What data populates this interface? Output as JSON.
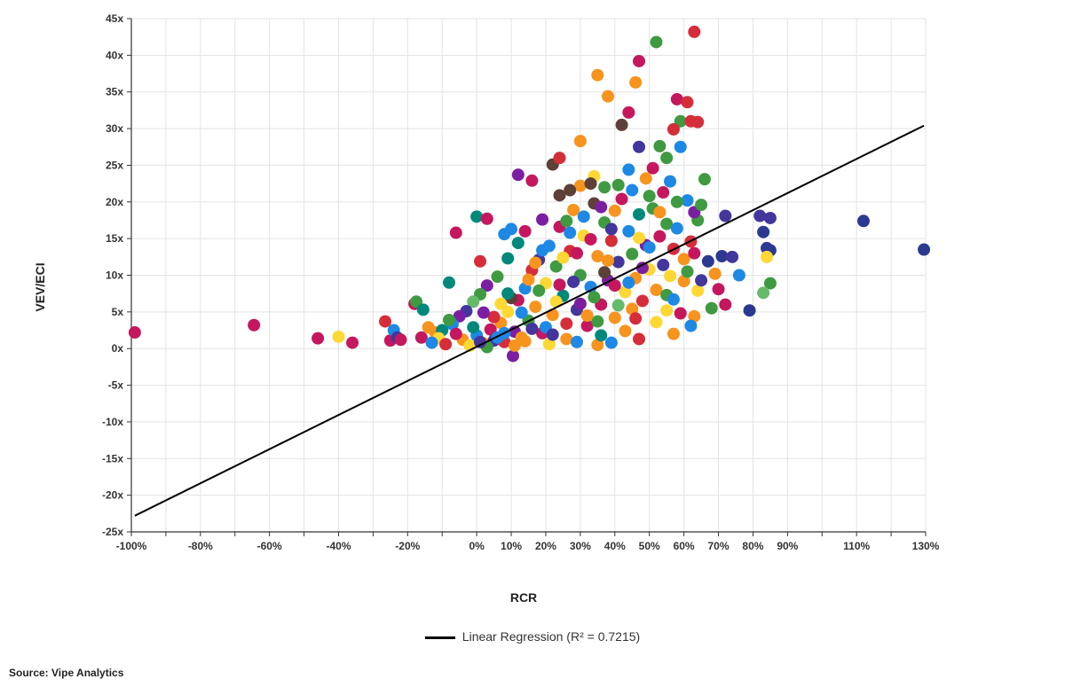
{
  "chart_data": {
    "type": "scatter",
    "title": "",
    "xlabel": "RCR",
    "ylabel": "VEV/ECI",
    "xlim": [
      -100,
      130
    ],
    "ylim": [
      -25,
      45
    ],
    "x_ticks": [
      -100,
      -90,
      -80,
      -70,
      -60,
      -50,
      -40,
      -30,
      -20,
      -10,
      0,
      10,
      20,
      30,
      40,
      50,
      60,
      70,
      80,
      90,
      100,
      110,
      120,
      130
    ],
    "x_tick_labels": [
      "-100%",
      "",
      "-80%",
      "",
      "-60%",
      "",
      "-40%",
      "",
      "-20%",
      "",
      "0%",
      "10%",
      "20%",
      "30%",
      "40%",
      "50%",
      "60%",
      "70%",
      "80%",
      "90%",
      "",
      "110%",
      "",
      "130%"
    ],
    "y_ticks": [
      -25,
      -20,
      -15,
      -10,
      -5,
      0,
      5,
      10,
      15,
      20,
      25,
      30,
      35,
      40,
      45
    ],
    "y_tick_labels": [
      "-25x",
      "-20x",
      "-15x",
      "-10x",
      "-5x",
      "0x",
      "5x",
      "10x",
      "15x",
      "20x",
      "25x",
      "30x",
      "35x",
      "40x",
      "45x"
    ],
    "grid": true,
    "legend_position": "bottom-center",
    "palette": [
      "#d62d3a",
      "#c5175e",
      "#f7941e",
      "#fdd835",
      "#3f9a41",
      "#1e88e5",
      "#43369c",
      "#7b1fa2",
      "#00897b",
      "#5d4037",
      "#2b3990",
      "#66bb6a"
    ],
    "points": [
      {
        "x": -99,
        "y": 2.2,
        "c": 1
      },
      {
        "x": -64.5,
        "y": 3.2,
        "c": 1
      },
      {
        "x": -46,
        "y": 1.4,
        "c": 1
      },
      {
        "x": -40,
        "y": 1.6,
        "c": 3
      },
      {
        "x": -36,
        "y": 0.8,
        "c": 1
      },
      {
        "x": -26.5,
        "y": 3.7,
        "c": 0
      },
      {
        "x": -25,
        "y": 1.1,
        "c": 1
      },
      {
        "x": -24,
        "y": 2.5,
        "c": 5
      },
      {
        "x": -23,
        "y": 1.5,
        "c": 6
      },
      {
        "x": -22,
        "y": 1.2,
        "c": 1
      },
      {
        "x": -18,
        "y": 6.1,
        "c": 1
      },
      {
        "x": -17.5,
        "y": 6.4,
        "c": 4
      },
      {
        "x": -16,
        "y": 1.5,
        "c": 1
      },
      {
        "x": -15.5,
        "y": 5.3,
        "c": 8
      },
      {
        "x": -12,
        "y": 2.2,
        "c": 2
      },
      {
        "x": -8,
        "y": 9.0,
        "c": 8
      },
      {
        "x": -6,
        "y": 15.8,
        "c": 1
      },
      {
        "x": 0,
        "y": 18.0,
        "c": 8
      },
      {
        "x": 1,
        "y": 11.9,
        "c": 0
      },
      {
        "x": 3,
        "y": 17.7,
        "c": 1
      },
      {
        "x": 8,
        "y": 15.6,
        "c": 5
      },
      {
        "x": 10,
        "y": 16.3,
        "c": 5
      },
      {
        "x": 12,
        "y": 23.7,
        "c": 7
      },
      {
        "x": 16,
        "y": 22.9,
        "c": 1
      },
      {
        "x": 10.5,
        "y": -1.0,
        "c": 7
      },
      {
        "x": 22,
        "y": 25.1,
        "c": 9
      },
      {
        "x": 24,
        "y": 26.0,
        "c": 0
      },
      {
        "x": 30,
        "y": 28.3,
        "c": 2
      },
      {
        "x": 35,
        "y": 37.3,
        "c": 2
      },
      {
        "x": 38,
        "y": 34.4,
        "c": 2
      },
      {
        "x": 42,
        "y": 30.5,
        "c": 9
      },
      {
        "x": 44,
        "y": 32.2,
        "c": 1
      },
      {
        "x": 46,
        "y": 36.3,
        "c": 2
      },
      {
        "x": 47,
        "y": 39.2,
        "c": 1
      },
      {
        "x": 52,
        "y": 41.8,
        "c": 4
      },
      {
        "x": 63,
        "y": 43.2,
        "c": 0
      },
      {
        "x": 58,
        "y": 34.0,
        "c": 1
      },
      {
        "x": 61,
        "y": 33.6,
        "c": 0
      },
      {
        "x": 59,
        "y": 31.0,
        "c": 4
      },
      {
        "x": 62,
        "y": 31.0,
        "c": 0
      },
      {
        "x": 64,
        "y": 30.9,
        "c": 0
      },
      {
        "x": 57,
        "y": 29.9,
        "c": 0
      },
      {
        "x": 53,
        "y": 27.6,
        "c": 4
      },
      {
        "x": 55,
        "y": 26.0,
        "c": 4
      },
      {
        "x": 59,
        "y": 27.5,
        "c": 5
      },
      {
        "x": 47,
        "y": 27.5,
        "c": 6
      },
      {
        "x": 51,
        "y": 24.6,
        "c": 1
      },
      {
        "x": 66,
        "y": 23.1,
        "c": 4
      },
      {
        "x": 72,
        "y": 18.1,
        "c": 6
      },
      {
        "x": 82,
        "y": 18.1,
        "c": 6
      },
      {
        "x": 85,
        "y": 17.8,
        "c": 6
      },
      {
        "x": 83,
        "y": 15.9,
        "c": 10
      },
      {
        "x": 84,
        "y": 13.7,
        "c": 10
      },
      {
        "x": 85,
        "y": 13.4,
        "c": 10
      },
      {
        "x": 84,
        "y": 12.5,
        "c": 3
      },
      {
        "x": 112,
        "y": 17.4,
        "c": 10
      },
      {
        "x": 129.5,
        "y": 13.5,
        "c": 10
      },
      {
        "x": 71,
        "y": 12.6,
        "c": 10
      },
      {
        "x": 74,
        "y": 12.5,
        "c": 6
      },
      {
        "x": 67,
        "y": 11.9,
        "c": 10
      },
      {
        "x": 76,
        "y": 10.0,
        "c": 5
      },
      {
        "x": 69,
        "y": 10.2,
        "c": 2
      },
      {
        "x": 70,
        "y": 8.1,
        "c": 1
      },
      {
        "x": 85,
        "y": 8.9,
        "c": 4
      },
      {
        "x": 83,
        "y": 7.6,
        "c": 11
      },
      {
        "x": 72,
        "y": 6.0,
        "c": 1
      },
      {
        "x": 68,
        "y": 5.5,
        "c": 4
      },
      {
        "x": 79,
        "y": 5.2,
        "c": 10
      },
      {
        "x": 63,
        "y": 4.4,
        "c": 2
      },
      {
        "x": 62,
        "y": 3.1,
        "c": 5
      },
      {
        "x": 57,
        "y": 2.0,
        "c": 2
      },
      {
        "x": 47,
        "y": 1.3,
        "c": 0
      },
      {
        "x": 39,
        "y": 0.8,
        "c": 5
      },
      {
        "x": 35,
        "y": 0.5,
        "c": 2
      },
      {
        "x": 60,
        "y": 9.2,
        "c": 2
      },
      {
        "x": 64,
        "y": 7.9,
        "c": 3
      },
      {
        "x": 65,
        "y": 9.3,
        "c": 6
      },
      {
        "x": 59,
        "y": 4.8,
        "c": 1
      },
      {
        "x": 55,
        "y": 5.2,
        "c": 3
      },
      {
        "x": 62,
        "y": 14.6,
        "c": 0
      },
      {
        "x": 64,
        "y": 17.5,
        "c": 4
      },
      {
        "x": 63,
        "y": 18.6,
        "c": 7
      },
      {
        "x": 65,
        "y": 19.6,
        "c": 4
      },
      {
        "x": 61,
        "y": 20.2,
        "c": 5
      },
      {
        "x": 56,
        "y": 22.8,
        "c": 5
      },
      {
        "x": 54,
        "y": 21.3,
        "c": 1
      },
      {
        "x": 49,
        "y": 23.2,
        "c": 2
      },
      {
        "x": 44,
        "y": 24.4,
        "c": 5
      },
      {
        "x": 41,
        "y": 22.3,
        "c": 4
      },
      {
        "x": 37,
        "y": 22.0,
        "c": 4
      },
      {
        "x": 34,
        "y": 23.5,
        "c": 3
      },
      {
        "x": 30,
        "y": 22.2,
        "c": 2
      },
      {
        "x": 27,
        "y": 21.6,
        "c": 9
      },
      {
        "x": 24,
        "y": 20.9,
        "c": 9
      },
      {
        "x": 19,
        "y": 17.6,
        "c": 7
      },
      {
        "x": 14,
        "y": 16.0,
        "c": 1
      },
      {
        "x": 12,
        "y": 14.4,
        "c": 8
      },
      {
        "x": 9,
        "y": 12.3,
        "c": 8
      },
      {
        "x": 6,
        "y": 9.8,
        "c": 4
      },
      {
        "x": 3,
        "y": 8.6,
        "c": 7
      },
      {
        "x": 1,
        "y": 7.4,
        "c": 4
      },
      {
        "x": -1,
        "y": 6.4,
        "c": 11
      },
      {
        "x": -3,
        "y": 5.1,
        "c": 6
      },
      {
        "x": -5,
        "y": 4.4,
        "c": 7
      },
      {
        "x": -7,
        "y": 3.3,
        "c": 5
      },
      {
        "x": -10,
        "y": 2.5,
        "c": 8
      },
      {
        "x": -11,
        "y": 1.4,
        "c": 3
      },
      {
        "x": -13,
        "y": 0.8,
        "c": 5
      },
      {
        "x": -14,
        "y": 2.9,
        "c": 2
      },
      {
        "x": -9,
        "y": 0.6,
        "c": 0
      },
      {
        "x": -4,
        "y": 1.2,
        "c": 2
      },
      {
        "x": -2,
        "y": 0.4,
        "c": 3
      },
      {
        "x": 0,
        "y": 1.8,
        "c": 5
      },
      {
        "x": 2,
        "y": 0.7,
        "c": 2
      },
      {
        "x": 4,
        "y": 2.6,
        "c": 1
      },
      {
        "x": 5,
        "y": 1.1,
        "c": 6
      },
      {
        "x": 7,
        "y": 3.5,
        "c": 2
      },
      {
        "x": 8,
        "y": 0.9,
        "c": 0
      },
      {
        "x": 9,
        "y": 5.0,
        "c": 3
      },
      {
        "x": 11,
        "y": 2.3,
        "c": 7
      },
      {
        "x": 12,
        "y": 6.6,
        "c": 1
      },
      {
        "x": 13,
        "y": 1.5,
        "c": 2
      },
      {
        "x": 14,
        "y": 8.2,
        "c": 5
      },
      {
        "x": 15,
        "y": 3.8,
        "c": 4
      },
      {
        "x": 16,
        "y": 10.7,
        "c": 0
      },
      {
        "x": 17,
        "y": 5.7,
        "c": 2
      },
      {
        "x": 18,
        "y": 12.1,
        "c": 6
      },
      {
        "x": 19,
        "y": 2.1,
        "c": 1
      },
      {
        "x": 20,
        "y": 8.9,
        "c": 3
      },
      {
        "x": 21,
        "y": 14.0,
        "c": 5
      },
      {
        "x": 22,
        "y": 4.6,
        "c": 2
      },
      {
        "x": 23,
        "y": 11.2,
        "c": 4
      },
      {
        "x": 24,
        "y": 16.6,
        "c": 1
      },
      {
        "x": 25,
        "y": 7.2,
        "c": 8
      },
      {
        "x": 26,
        "y": 1.3,
        "c": 2
      },
      {
        "x": 27,
        "y": 13.3,
        "c": 0
      },
      {
        "x": 28,
        "y": 18.9,
        "c": 2
      },
      {
        "x": 29,
        "y": 5.3,
        "c": 6
      },
      {
        "x": 30,
        "y": 10.0,
        "c": 4
      },
      {
        "x": 31,
        "y": 15.4,
        "c": 3
      },
      {
        "x": 32,
        "y": 3.1,
        "c": 1
      },
      {
        "x": 33,
        "y": 8.4,
        "c": 5
      },
      {
        "x": 34,
        "y": 19.8,
        "c": 9
      },
      {
        "x": 35,
        "y": 12.6,
        "c": 2
      },
      {
        "x": 36,
        "y": 6.0,
        "c": 1
      },
      {
        "x": 37,
        "y": 17.2,
        "c": 4
      },
      {
        "x": 38,
        "y": 9.3,
        "c": 7
      },
      {
        "x": 39,
        "y": 14.7,
        "c": 0
      },
      {
        "x": 40,
        "y": 4.2,
        "c": 2
      },
      {
        "x": 41,
        "y": 11.8,
        "c": 6
      },
      {
        "x": 42,
        "y": 20.4,
        "c": 1
      },
      {
        "x": 43,
        "y": 7.7,
        "c": 3
      },
      {
        "x": 44,
        "y": 16.0,
        "c": 5
      },
      {
        "x": 45,
        "y": 12.9,
        "c": 4
      },
      {
        "x": 46,
        "y": 9.6,
        "c": 2
      },
      {
        "x": 47,
        "y": 18.3,
        "c": 8
      },
      {
        "x": 48,
        "y": 6.5,
        "c": 0
      },
      {
        "x": 49,
        "y": 14.1,
        "c": 7
      },
      {
        "x": 50,
        "y": 10.8,
        "c": 3
      },
      {
        "x": 51,
        "y": 19.1,
        "c": 4
      },
      {
        "x": 52,
        "y": 8.0,
        "c": 2
      },
      {
        "x": 53,
        "y": 15.3,
        "c": 1
      },
      {
        "x": 54,
        "y": 11.4,
        "c": 6
      },
      {
        "x": 55,
        "y": 17.0,
        "c": 4
      },
      {
        "x": 56,
        "y": 9.9,
        "c": 3
      },
      {
        "x": 57,
        "y": 13.6,
        "c": 0
      },
      {
        "x": 58,
        "y": 16.4,
        "c": 5
      },
      {
        "x": 60,
        "y": 12.2,
        "c": 2
      },
      {
        "x": 61,
        "y": 10.5,
        "c": 4
      },
      {
        "x": 63,
        "y": 13.0,
        "c": 1
      },
      {
        "x": 10,
        "y": 6.9,
        "c": 9
      },
      {
        "x": 15,
        "y": 9.4,
        "c": 2
      },
      {
        "x": 20,
        "y": 2.9,
        "c": 5
      },
      {
        "x": 25,
        "y": 12.4,
        "c": 3
      },
      {
        "x": 30,
        "y": 6.1,
        "c": 7
      },
      {
        "x": 35,
        "y": 3.7,
        "c": 4
      },
      {
        "x": 40,
        "y": 8.6,
        "c": 1
      },
      {
        "x": 45,
        "y": 5.4,
        "c": 2
      },
      {
        "x": 50,
        "y": 13.8,
        "c": 5
      },
      {
        "x": 55,
        "y": 7.3,
        "c": 4
      },
      {
        "x": 5,
        "y": 4.3,
        "c": 0
      },
      {
        "x": 18,
        "y": 7.9,
        "c": 4
      },
      {
        "x": 28,
        "y": 9.1,
        "c": 6
      },
      {
        "x": 38,
        "y": 12.0,
        "c": 2
      },
      {
        "x": 48,
        "y": 11.0,
        "c": 7
      },
      {
        "x": 33,
        "y": 14.9,
        "c": 1
      },
      {
        "x": 23,
        "y": 6.4,
        "c": 3
      },
      {
        "x": 13,
        "y": 4.9,
        "c": 5
      },
      {
        "x": 43,
        "y": 2.4,
        "c": 2
      },
      {
        "x": 29,
        "y": 0.9,
        "c": 5
      },
      {
        "x": 21,
        "y": 0.6,
        "c": 3
      },
      {
        "x": 11,
        "y": 0.4,
        "c": 2
      },
      {
        "x": 3,
        "y": 0.2,
        "c": 4
      },
      {
        "x": 36,
        "y": 1.8,
        "c": 8
      },
      {
        "x": 26,
        "y": 3.4,
        "c": 0
      },
      {
        "x": 16,
        "y": 2.7,
        "c": 6
      },
      {
        "x": 6,
        "y": 1.5,
        "c": 5
      },
      {
        "x": 41,
        "y": 5.9,
        "c": 11
      },
      {
        "x": 46,
        "y": 4.1,
        "c": 0
      },
      {
        "x": 52,
        "y": 3.6,
        "c": 3
      },
      {
        "x": 57,
        "y": 6.7,
        "c": 5
      },
      {
        "x": 31,
        "y": 18.0,
        "c": 5
      },
      {
        "x": 26,
        "y": 17.4,
        "c": 4
      },
      {
        "x": 36,
        "y": 19.3,
        "c": 7
      },
      {
        "x": 40,
        "y": 18.8,
        "c": 2
      },
      {
        "x": 45,
        "y": 21.6,
        "c": 5
      },
      {
        "x": 50,
        "y": 20.8,
        "c": 4
      },
      {
        "x": 33,
        "y": 22.5,
        "c": 9
      },
      {
        "x": 39,
        "y": 16.3,
        "c": 6
      },
      {
        "x": 29,
        "y": 13.0,
        "c": 1
      },
      {
        "x": 19,
        "y": 13.4,
        "c": 5
      },
      {
        "x": 9,
        "y": 7.5,
        "c": 8
      },
      {
        "x": 2,
        "y": 4.9,
        "c": 7
      },
      {
        "x": -6,
        "y": 2.0,
        "c": 1
      },
      {
        "x": -8,
        "y": 3.9,
        "c": 4
      },
      {
        "x": 7,
        "y": 6.1,
        "c": 3
      },
      {
        "x": 17,
        "y": 11.7,
        "c": 2
      },
      {
        "x": 27,
        "y": 15.8,
        "c": 5
      },
      {
        "x": 37,
        "y": 10.4,
        "c": 9
      },
      {
        "x": 47,
        "y": 15.1,
        "c": 3
      },
      {
        "x": 53,
        "y": 18.6,
        "c": 2
      },
      {
        "x": 58,
        "y": 20.0,
        "c": 4
      },
      {
        "x": 24,
        "y": 8.7,
        "c": 1
      },
      {
        "x": 34,
        "y": 7.0,
        "c": 4
      },
      {
        "x": 44,
        "y": 9.0,
        "c": 5
      },
      {
        "x": 14,
        "y": 1.0,
        "c": 2
      },
      {
        "x": 8,
        "y": 2.1,
        "c": 5
      },
      {
        "x": 1,
        "y": 0.9,
        "c": 6
      },
      {
        "x": -1,
        "y": 2.9,
        "c": 8
      },
      {
        "x": 22,
        "y": 1.9,
        "c": 6
      },
      {
        "x": 32,
        "y": 4.5,
        "c": 2
      }
    ],
    "regression": {
      "name": "Linear Regression (R² = 0.7215)",
      "x": [
        -99,
        129.5
      ],
      "y": [
        -22.8,
        30.4
      ]
    }
  },
  "legend": {
    "label": "Linear Regression (R² = 0.7215)"
  },
  "source": "Source: Vipe Analytics"
}
